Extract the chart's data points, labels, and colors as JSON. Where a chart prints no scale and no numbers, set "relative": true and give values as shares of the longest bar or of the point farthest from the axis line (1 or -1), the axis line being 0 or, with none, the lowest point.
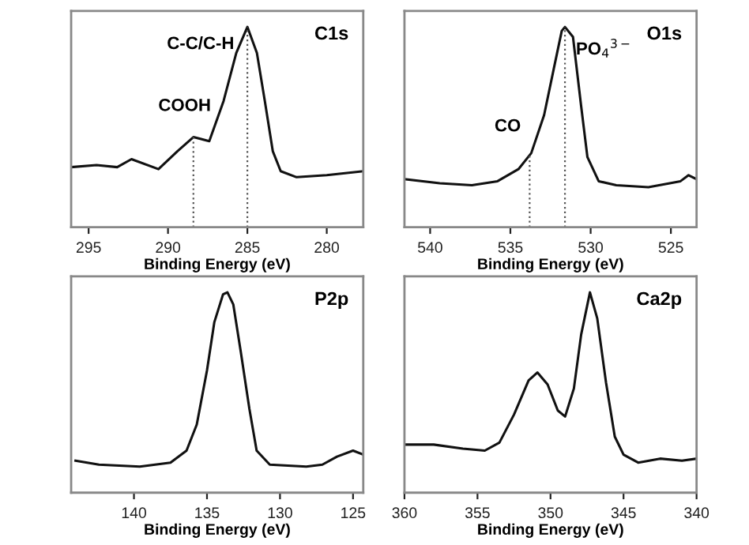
{
  "chart_data": [
    {
      "type": "line",
      "title": "C1s",
      "xlabel": "Binding Energy (eV)",
      "relative": true,
      "tick_labels": "x",
      "color": "#111111",
      "line_style": "solid",
      "xlim": [
        296.1,
        277.7
      ],
      "xticks": [
        295,
        290,
        285,
        280
      ],
      "x": [
        296.1,
        294.5,
        293.2,
        292.3,
        290.6,
        289.4,
        288.4,
        287.4,
        286.5,
        285.7,
        285.0,
        284.4,
        283.9,
        283.4,
        282.9,
        281.9,
        280.0,
        277.7
      ],
      "values": [
        0.3,
        0.31,
        0.3,
        0.34,
        0.29,
        0.38,
        0.45,
        0.43,
        0.63,
        0.87,
        1.0,
        0.87,
        0.63,
        0.38,
        0.28,
        0.25,
        0.26,
        0.28
      ],
      "ref_lines": [
        {
          "axis": "x",
          "value": 288.4,
          "line_style": "dotted"
        },
        {
          "axis": "x",
          "value": 285.0,
          "line_style": "dotted"
        }
      ],
      "annotations": [
        {
          "text": "C-C/C-H",
          "x": 285.0,
          "y": 1.0
        },
        {
          "text": "COOH",
          "x": 288.4,
          "y": 0.45
        }
      ]
    },
    {
      "type": "line",
      "title": "O1s",
      "xlabel": "Binding Energy (eV)",
      "relative": true,
      "tick_labels": "x",
      "color": "#111111",
      "line_style": "solid",
      "xlim": [
        541.6,
        523.4
      ],
      "xticks": [
        540,
        535,
        530,
        525
      ],
      "x": [
        541.6,
        539.4,
        537.4,
        535.8,
        534.5,
        533.7,
        532.9,
        532.3,
        531.8,
        531.6,
        531.1,
        530.6,
        530.2,
        529.5,
        528.4,
        526.4,
        524.4,
        523.9,
        523.4
      ],
      "values": [
        0.24,
        0.22,
        0.21,
        0.23,
        0.29,
        0.37,
        0.56,
        0.79,
        0.98,
        1.0,
        0.95,
        0.61,
        0.35,
        0.23,
        0.21,
        0.2,
        0.23,
        0.26,
        0.24
      ],
      "ref_lines": [
        {
          "axis": "x",
          "value": 533.8,
          "line_style": "dotted"
        },
        {
          "axis": "x",
          "value": 531.6,
          "line_style": "dotted"
        }
      ],
      "annotations": [
        {
          "text": "CO",
          "x": 533.8,
          "y": 0.37
        },
        {
          "text": "PO$_{4}$$^{3−}$",
          "x": 531.6,
          "y": 1.0
        }
      ]
    },
    {
      "type": "line",
      "title": "P2p",
      "xlabel": "Binding Energy (eV)",
      "relative": true,
      "tick_labels": "x",
      "color": "#111111",
      "line_style": "solid",
      "xlim": [
        144.3,
        124.3
      ],
      "xticks": [
        140,
        135,
        130,
        125
      ],
      "x": [
        144.0,
        142.4,
        139.6,
        137.5,
        136.4,
        135.7,
        135.0,
        134.5,
        133.9,
        133.6,
        133.2,
        132.7,
        132.1,
        131.6,
        130.7,
        128.2,
        127.1,
        126.1,
        125.0,
        124.3
      ],
      "values": [
        0.16,
        0.14,
        0.13,
        0.15,
        0.21,
        0.34,
        0.61,
        0.85,
        0.99,
        1.0,
        0.94,
        0.71,
        0.42,
        0.21,
        0.14,
        0.13,
        0.14,
        0.18,
        0.21,
        0.19
      ]
    },
    {
      "type": "line",
      "title": "Ca2p",
      "xlabel": "Binding Energy (eV)",
      "relative": true,
      "tick_labels": "x",
      "color": "#111111",
      "line_style": "solid",
      "xlim": [
        360,
        340
      ],
      "xticks": [
        360,
        355,
        350,
        345,
        340
      ],
      "x": [
        360,
        358,
        356,
        354.5,
        353.5,
        352.5,
        351.5,
        350.9,
        350.2,
        349.5,
        349.0,
        348.4,
        347.9,
        347.3,
        346.8,
        346.2,
        345.6,
        345,
        344,
        342.5,
        341,
        340
      ],
      "values": [
        0.24,
        0.24,
        0.22,
        0.21,
        0.25,
        0.39,
        0.56,
        0.6,
        0.54,
        0.41,
        0.38,
        0.52,
        0.79,
        1.0,
        0.87,
        0.55,
        0.28,
        0.19,
        0.15,
        0.17,
        0.16,
        0.17
      ]
    }
  ]
}
